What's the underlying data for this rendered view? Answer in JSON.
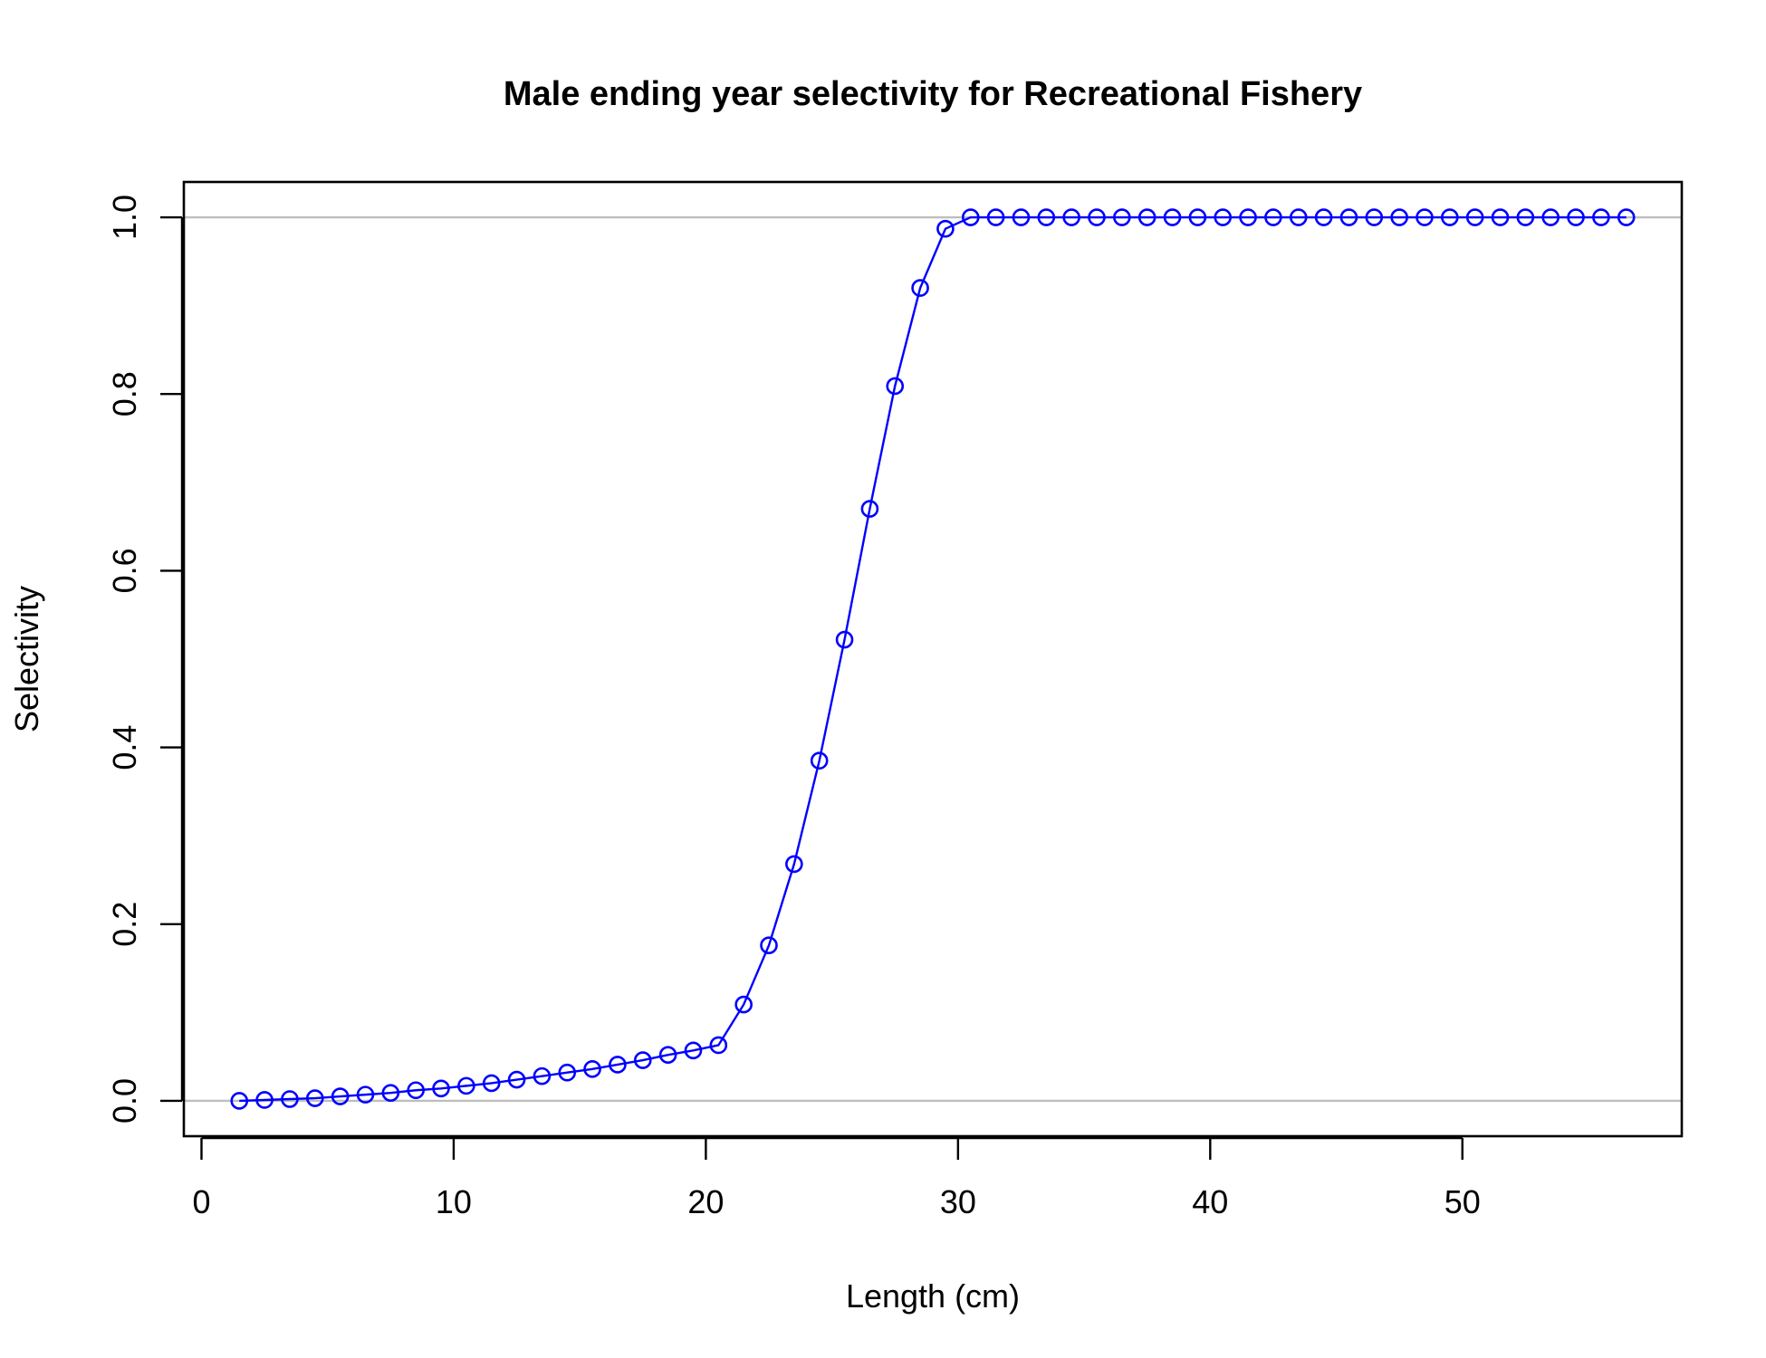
{
  "chart_data": {
    "type": "line",
    "title": "Male ending year selectivity for Recreational Fishery",
    "xlabel": "Length (cm)",
    "ylabel": "Selectivity",
    "xlim": [
      -0.7,
      58.7
    ],
    "ylim": [
      -0.04,
      1.04
    ],
    "xticks": [
      0,
      10,
      20,
      30,
      40,
      50
    ],
    "yticks": [
      0.0,
      0.2,
      0.4,
      0.6,
      0.8,
      1.0
    ],
    "xtick_labels": [
      "0",
      "10",
      "20",
      "30",
      "40",
      "50"
    ],
    "ytick_labels": [
      "0.0",
      "0.2",
      "0.4",
      "0.6",
      "0.8",
      "1.0"
    ],
    "reference_lines_y": [
      0,
      1
    ],
    "series_color": "#0000ff",
    "reference_line_color": "#bebebe",
    "grid": false,
    "legend": "none",
    "x": [
      1.5,
      2.5,
      3.5,
      4.5,
      5.5,
      6.5,
      7.5,
      8.5,
      9.5,
      10.5,
      11.5,
      12.5,
      13.5,
      14.5,
      15.5,
      16.5,
      17.5,
      18.5,
      19.5,
      20.5,
      21.5,
      22.5,
      23.5,
      24.5,
      25.5,
      26.5,
      27.5,
      28.5,
      29.5,
      30.5,
      31.5,
      32.5,
      33.5,
      34.5,
      35.5,
      36.5,
      37.5,
      38.5,
      39.5,
      40.5,
      41.5,
      42.5,
      43.5,
      44.5,
      45.5,
      46.5,
      47.5,
      48.5,
      49.5,
      50.5,
      51.5,
      52.5,
      53.5,
      54.5,
      55.5,
      56.5
    ],
    "y": [
      0.0,
      0.001,
      0.002,
      0.003,
      0.005,
      0.007,
      0.009,
      0.012,
      0.014,
      0.017,
      0.02,
      0.024,
      0.028,
      0.032,
      0.036,
      0.041,
      0.046,
      0.052,
      0.057,
      0.063,
      0.109,
      0.176,
      0.268,
      0.385,
      0.522,
      0.67,
      0.809,
      0.92,
      0.987,
      1.0,
      1.0,
      1.0,
      1.0,
      1.0,
      1.0,
      1.0,
      1.0,
      1.0,
      1.0,
      1.0,
      1.0,
      1.0,
      1.0,
      1.0,
      1.0,
      1.0,
      1.0,
      1.0,
      1.0,
      1.0,
      1.0,
      1.0,
      1.0,
      1.0,
      1.0,
      1.0
    ]
  }
}
